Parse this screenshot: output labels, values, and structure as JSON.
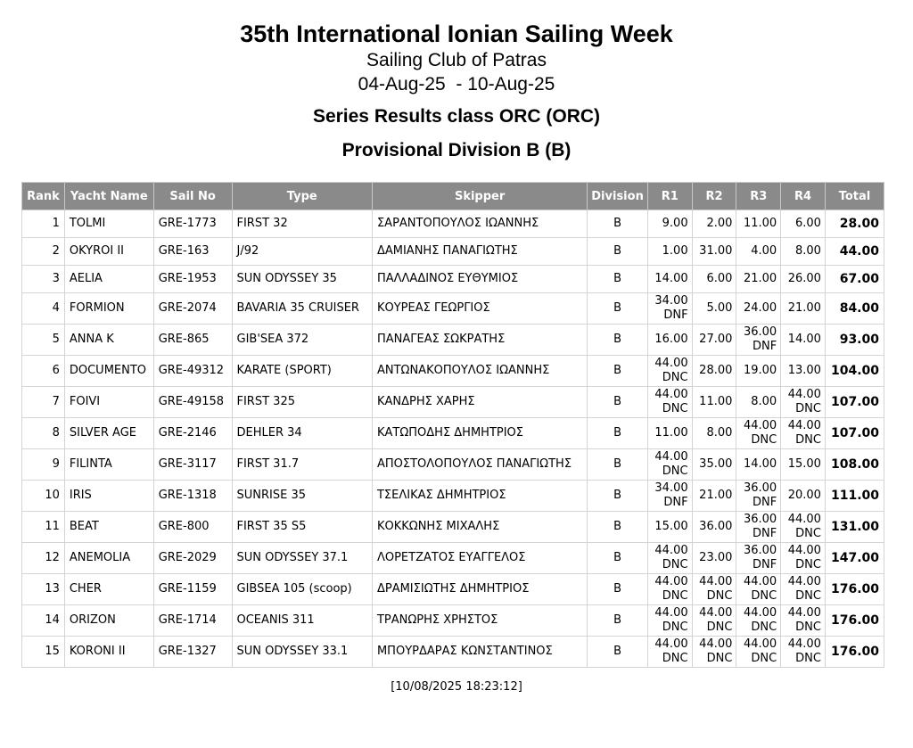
{
  "header": {
    "title": "35th International Ionian Sailing Week",
    "club": "Sailing Club of Patras",
    "dates": "04-Aug-25  - 10-Aug-25",
    "series": "Series Results class ORC (ORC)",
    "division": "Provisional Division B (B)"
  },
  "table": {
    "columns": [
      "Rank",
      "Yacht Name",
      "Sail No",
      "Type",
      "Skipper",
      "Division",
      "R1",
      "R2",
      "R3",
      "R4",
      "Total"
    ],
    "rows": [
      {
        "rank": "1",
        "yacht": "TOLMI",
        "sail": "GRE-1773",
        "type": "FIRST 32",
        "skipper": "ΣΑΡΑΝΤΟΠΟΥΛΟΣ ΙΩΑΝΝΗΣ",
        "division": "B",
        "races": [
          {
            "score": "9.00"
          },
          {
            "score": "2.00"
          },
          {
            "score": "11.00"
          },
          {
            "score": "6.00"
          }
        ],
        "total": "28.00"
      },
      {
        "rank": "2",
        "yacht": "OKYROI II",
        "sail": "GRE-163",
        "type": "J/92",
        "skipper": "ΔΑΜΙΑΝΗΣ ΠΑΝΑΓΙΩΤΗΣ",
        "division": "B",
        "races": [
          {
            "score": "1.00"
          },
          {
            "score": "31.00"
          },
          {
            "score": "4.00"
          },
          {
            "score": "8.00"
          }
        ],
        "total": "44.00"
      },
      {
        "rank": "3",
        "yacht": "AELIA",
        "sail": "GRE-1953",
        "type": "SUN ODYSSEY 35",
        "skipper": "ΠΑΛΛΑΔΙΝΟΣ ΕΥΘΥΜΙΟΣ",
        "division": "B",
        "races": [
          {
            "score": "14.00"
          },
          {
            "score": "6.00"
          },
          {
            "score": "21.00"
          },
          {
            "score": "26.00"
          }
        ],
        "total": "67.00"
      },
      {
        "rank": "4",
        "yacht": "FORMION",
        "sail": "GRE-2074",
        "type": "BAVARIA 35 CRUISER",
        "skipper": "ΚΟΥΡΕΑΣ ΓΕΩΡΓΙΟΣ",
        "division": "B",
        "races": [
          {
            "score": "34.00",
            "code": "DNF"
          },
          {
            "score": "5.00"
          },
          {
            "score": "24.00"
          },
          {
            "score": "21.00"
          }
        ],
        "total": "84.00"
      },
      {
        "rank": "5",
        "yacht": "ANNA K",
        "sail": "GRE-865",
        "type": "GIB'SEA 372",
        "skipper": "ΠΑΝΑΓΕΑΣ ΣΩΚΡΑΤΗΣ",
        "division": "B",
        "races": [
          {
            "score": "16.00"
          },
          {
            "score": "27.00"
          },
          {
            "score": "36.00",
            "code": "DNF"
          },
          {
            "score": "14.00"
          }
        ],
        "total": "93.00"
      },
      {
        "rank": "6",
        "yacht": "DOCUMENTO",
        "sail": "GRE-49312",
        "type": "KARATE (SPORT)",
        "skipper": "ΑΝΤΩΝΑΚΟΠΟΥΛΟΣ ΙΩΑΝΝΗΣ",
        "division": "B",
        "races": [
          {
            "score": "44.00",
            "code": "DNC"
          },
          {
            "score": "28.00"
          },
          {
            "score": "19.00"
          },
          {
            "score": "13.00"
          }
        ],
        "total": "104.00"
      },
      {
        "rank": "7",
        "yacht": "FOIVI",
        "sail": "GRE-49158",
        "type": "FIRST 325",
        "skipper": "ΚΑΝΔΡΗΣ ΧΑΡΗΣ",
        "division": "B",
        "races": [
          {
            "score": "44.00",
            "code": "DNC"
          },
          {
            "score": "11.00"
          },
          {
            "score": "8.00"
          },
          {
            "score": "44.00",
            "code": "DNC"
          }
        ],
        "total": "107.00"
      },
      {
        "rank": "8",
        "yacht": "SILVER AGE",
        "sail": "GRE-2146",
        "type": "DEHLER 34",
        "skipper": "ΚΑΤΩΠΟΔΗΣ ΔΗΜΗΤΡΙΟΣ",
        "division": "B",
        "races": [
          {
            "score": "11.00"
          },
          {
            "score": "8.00"
          },
          {
            "score": "44.00",
            "code": "DNC"
          },
          {
            "score": "44.00",
            "code": "DNC"
          }
        ],
        "total": "107.00"
      },
      {
        "rank": "9",
        "yacht": "FILINTA",
        "sail": "GRE-3117",
        "type": "FIRST 31.7",
        "skipper": "ΑΠΟΣΤΟΛΟΠΟΥΛΟΣ ΠΑΝΑΓΙΩΤΗΣ",
        "division": "B",
        "races": [
          {
            "score": "44.00",
            "code": "DNC"
          },
          {
            "score": "35.00"
          },
          {
            "score": "14.00"
          },
          {
            "score": "15.00"
          }
        ],
        "total": "108.00"
      },
      {
        "rank": "10",
        "yacht": "IRIS",
        "sail": "GRE-1318",
        "type": "SUNRISE 35",
        "skipper": "ΤΣΕΛΙΚΑΣ ΔΗΜΗΤΡΙΟΣ",
        "division": "B",
        "races": [
          {
            "score": "34.00",
            "code": "DNF"
          },
          {
            "score": "21.00"
          },
          {
            "score": "36.00",
            "code": "DNF"
          },
          {
            "score": "20.00"
          }
        ],
        "total": "111.00"
      },
      {
        "rank": "11",
        "yacht": "BEAT",
        "sail": "GRE-800",
        "type": "FIRST 35 S5",
        "skipper": "ΚΟΚΚΩΝΗΣ ΜΙΧΑΛΗΣ",
        "division": "B",
        "races": [
          {
            "score": "15.00"
          },
          {
            "score": "36.00"
          },
          {
            "score": "36.00",
            "code": "DNF"
          },
          {
            "score": "44.00",
            "code": "DNC"
          }
        ],
        "total": "131.00"
      },
      {
        "rank": "12",
        "yacht": "ANEMOLIA",
        "sail": "GRE-2029",
        "type": "SUN ODYSSEY 37.1",
        "skipper": "ΛΟΡΕΤΖΑΤΟΣ ΕΥΑΓΓΕΛΟΣ",
        "division": "B",
        "races": [
          {
            "score": "44.00",
            "code": "DNC"
          },
          {
            "score": "23.00"
          },
          {
            "score": "36.00",
            "code": "DNF"
          },
          {
            "score": "44.00",
            "code": "DNC"
          }
        ],
        "total": "147.00"
      },
      {
        "rank": "13",
        "yacht": "CHER",
        "sail": "GRE-1159",
        "type": "GIBSEA 105 (scoop)",
        "skipper": "ΔΡΑΜΙΣΙΩΤΗΣ ΔΗΜΗΤΡΙΟΣ",
        "division": "B",
        "races": [
          {
            "score": "44.00",
            "code": "DNC"
          },
          {
            "score": "44.00",
            "code": "DNC"
          },
          {
            "score": "44.00",
            "code": "DNC"
          },
          {
            "score": "44.00",
            "code": "DNC"
          }
        ],
        "total": "176.00"
      },
      {
        "rank": "14",
        "yacht": "ORIZON",
        "sail": "GRE-1714",
        "type": "OCEANIS 311",
        "skipper": "ΤΡΑΝΩΡΗΣ ΧΡΗΣΤΟΣ",
        "division": "B",
        "races": [
          {
            "score": "44.00",
            "code": "DNC"
          },
          {
            "score": "44.00",
            "code": "DNC"
          },
          {
            "score": "44.00",
            "code": "DNC"
          },
          {
            "score": "44.00",
            "code": "DNC"
          }
        ],
        "total": "176.00"
      },
      {
        "rank": "15",
        "yacht": "KORONI II",
        "sail": "GRE-1327",
        "type": "SUN ODYSSEY 33.1",
        "skipper": "ΜΠΟΥΡΔΑΡΑΣ ΚΩΝΣΤΑΝΤΙΝΟΣ",
        "division": "B",
        "races": [
          {
            "score": "44.00",
            "code": "DNC"
          },
          {
            "score": "44.00",
            "code": "DNC"
          },
          {
            "score": "44.00",
            "code": "DNC"
          },
          {
            "score": "44.00",
            "code": "DNC"
          }
        ],
        "total": "176.00"
      }
    ]
  },
  "footer": {
    "timestamp": "[10/08/2025 18:23:12]"
  }
}
